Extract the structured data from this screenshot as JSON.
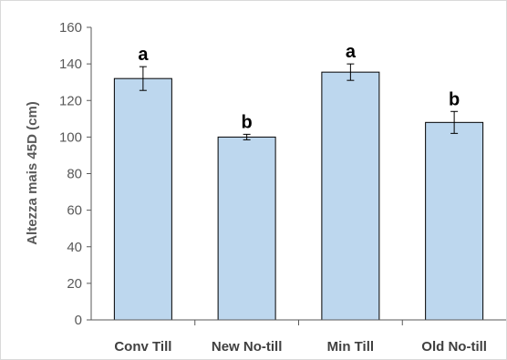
{
  "chart_data": {
    "type": "bar",
    "title": "",
    "xlabel": "",
    "ylabel": "Altezza mais 45D (cm)",
    "categories": [
      "Conv Till",
      "New No-till",
      "Min Till",
      "Old No-till"
    ],
    "values": [
      132,
      100,
      135.5,
      108
    ],
    "error": [
      6.5,
      1.5,
      4.5,
      6
    ],
    "significance": [
      "a",
      "b",
      "a",
      "b"
    ],
    "ylim": [
      0,
      160
    ],
    "yticks": [
      "0",
      "20",
      "40",
      "60",
      "80",
      "100",
      "120",
      "140",
      "160"
    ],
    "grid": false,
    "legend": "none",
    "bar_fill": "#bdd7ee",
    "bar_stroke": "#000000"
  }
}
